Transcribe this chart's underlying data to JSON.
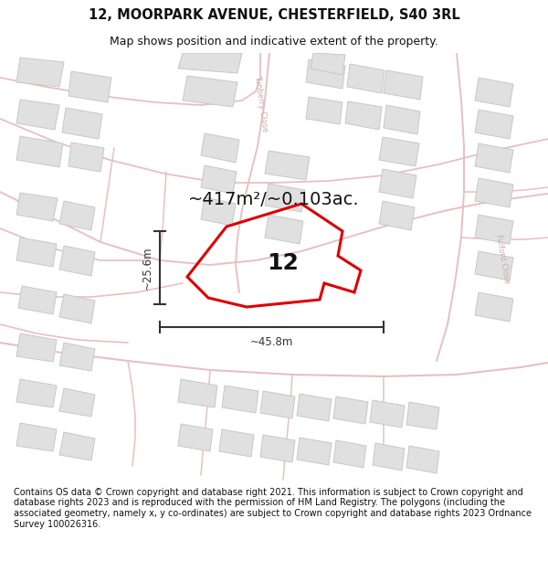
{
  "title": "12, MOORPARK AVENUE, CHESTERFIELD, S40 3RL",
  "subtitle": "Map shows position and indicative extent of the property.",
  "footer": "Contains OS data © Crown copyright and database right 2021. This information is subject to Crown copyright and database rights 2023 and is reproduced with the permission of HM Land Registry. The polygons (including the associated geometry, namely x, y co-ordinates) are subject to Crown copyright and database rights 2023 Ordnance Survey 100026316.",
  "area_text": "~417m²/~0.103ac.",
  "dim_width": "~45.8m",
  "dim_height": "~25.6m",
  "property_label": "12",
  "bg_color": "#ffffff",
  "road_color": "#e8c0c0",
  "road_fill": "#f5eded",
  "building_color": "#e0e0e0",
  "building_edge_color": "#c8c8c8",
  "highlight_color": "#dd0000",
  "dim_color": "#333333",
  "title_color": "#111111",
  "footer_color": "#111111",
  "map_bg": "#f8f6f5",
  "street_label_color": "#ccaaaa",
  "dunberry_label": "Tunberry Close",
  "fulford_label": "Fulford Close"
}
